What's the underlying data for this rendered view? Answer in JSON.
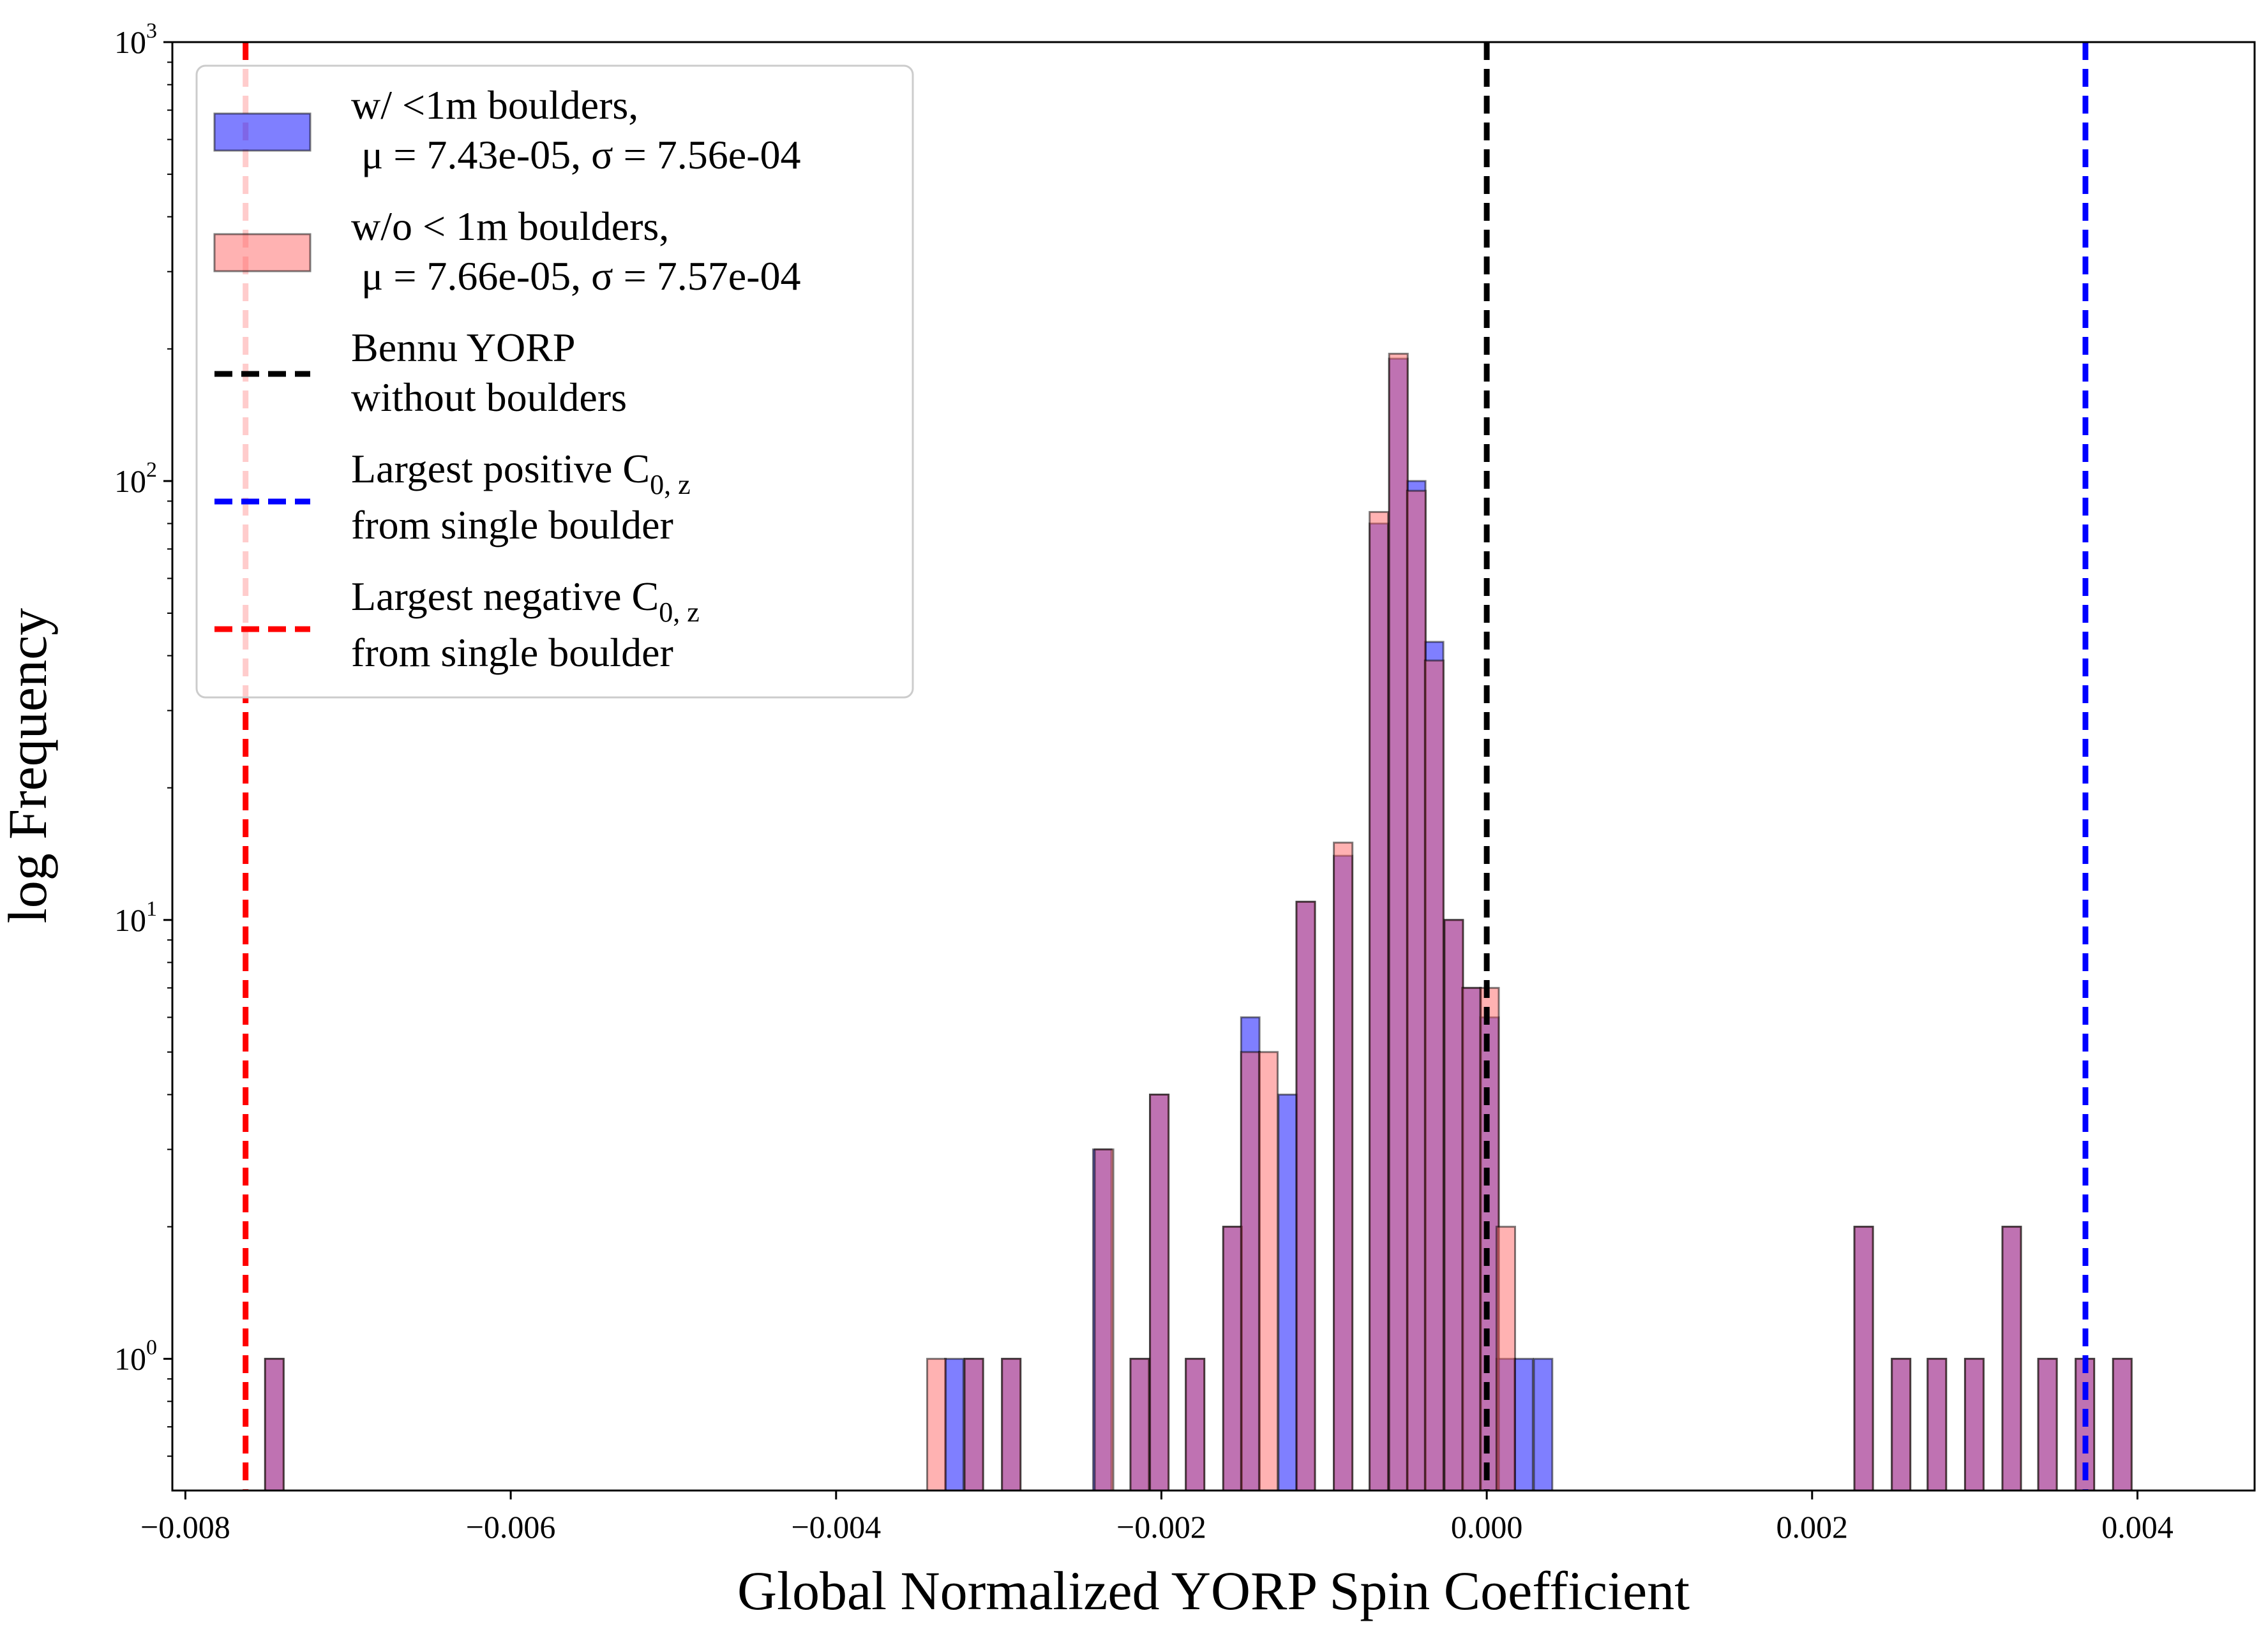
{
  "chart_data": {
    "type": "bar",
    "xlabel": "Global Normalized YORP Spin Coefficient",
    "ylabel": "log Frequency",
    "xlim": [
      -0.00808,
      0.00472
    ],
    "ylim_log": [
      -0.3,
      3
    ],
    "yscale": "log",
    "x_ticks": [
      {
        "value": -0.008,
        "label": "−0.008"
      },
      {
        "value": -0.006,
        "label": "−0.006"
      },
      {
        "value": -0.004,
        "label": "−0.004"
      },
      {
        "value": -0.002,
        "label": "−0.002"
      },
      {
        "value": 0.0,
        "label": "0.000"
      },
      {
        "value": 0.002,
        "label": "0.002"
      },
      {
        "value": 0.004,
        "label": "0.004"
      }
    ],
    "y_ticks": [
      {
        "exp": 0,
        "base": "10",
        "sup": "0"
      },
      {
        "exp": 1,
        "base": "10",
        "sup": "1"
      },
      {
        "exp": 2,
        "base": "10",
        "sup": "2"
      },
      {
        "exp": 3,
        "base": "10",
        "sup": "3"
      }
    ],
    "series": [
      {
        "key": "with",
        "color": "#0000ff",
        "legend_line1": "w/ <1m boulders,",
        "legend_line2": " μ = 7.43e-05, σ = 7.56e-04",
        "bin_width": 0.000113,
        "bins": [
          [
            -0.00751,
            1
          ],
          [
            -0.00333,
            1
          ],
          [
            -0.00321,
            1
          ],
          [
            -0.00298,
            1
          ],
          [
            -0.00242,
            3
          ],
          [
            -0.00219,
            1
          ],
          [
            -0.00207,
            4
          ],
          [
            -0.00185,
            1
          ],
          [
            -0.00162,
            2
          ],
          [
            -0.00151,
            6
          ],
          [
            -0.00128,
            4
          ],
          [
            -0.00117,
            11
          ],
          [
            -0.00094,
            14
          ],
          [
            -0.00072,
            80
          ],
          [
            -0.0006,
            190
          ],
          [
            -0.00049,
            100
          ],
          [
            -0.00038,
            43
          ],
          [
            -0.00026,
            10
          ],
          [
            -0.00015,
            7
          ],
          [
            -4e-05,
            6
          ],
          [
            6e-05,
            1
          ],
          [
            0.00017,
            1
          ],
          [
            0.00029,
            1
          ],
          [
            0.00226,
            2
          ],
          [
            0.00249,
            1
          ],
          [
            0.00271,
            1
          ],
          [
            0.00294,
            1
          ],
          [
            0.00317,
            2
          ],
          [
            0.00339,
            1
          ],
          [
            0.00362,
            1
          ],
          [
            0.00385,
            1
          ]
        ]
      },
      {
        "key": "without",
        "color": "#ff6666",
        "legend_line1": "w/o < 1m boulders,",
        "legend_line2": " μ = 7.66e-05, σ = 7.57e-04",
        "bin_width": 0.000114,
        "bins": [
          [
            -0.00751,
            1
          ],
          [
            -0.00344,
            1
          ],
          [
            -0.00321,
            1
          ],
          [
            -0.00298,
            1
          ],
          [
            -0.00241,
            3
          ],
          [
            -0.00219,
            1
          ],
          [
            -0.00207,
            4
          ],
          [
            -0.00185,
            1
          ],
          [
            -0.00162,
            2
          ],
          [
            -0.00151,
            5
          ],
          [
            -0.0014,
            5
          ],
          [
            -0.00117,
            11
          ],
          [
            -0.00094,
            15
          ],
          [
            -0.00072,
            85
          ],
          [
            -0.0006,
            195
          ],
          [
            -0.00049,
            95
          ],
          [
            -0.00038,
            39
          ],
          [
            -0.00026,
            10
          ],
          [
            -0.00015,
            7
          ],
          [
            -4e-05,
            7
          ],
          [
            6e-05,
            2
          ],
          [
            0.00226,
            2
          ],
          [
            0.00249,
            1
          ],
          [
            0.00271,
            1
          ],
          [
            0.00294,
            1
          ],
          [
            0.00317,
            2
          ],
          [
            0.00339,
            1
          ],
          [
            0.00362,
            1
          ],
          [
            0.00385,
            1
          ]
        ]
      }
    ],
    "vlines": [
      {
        "x": 0.0,
        "color": "#000000",
        "legend_line1": "Bennu YORP",
        "legend_line2": "without boulders"
      },
      {
        "x": 0.00368,
        "color": "#0000ff",
        "legend_line1": "Largest positive C",
        "legend_sub": "0, z",
        "legend_line2": "from single boulder"
      },
      {
        "x": -0.00763,
        "color": "#ff0000",
        "legend_line1": "Largest negative C",
        "legend_sub": "0, z",
        "legend_line2": "from single boulder"
      }
    ],
    "legend": "upper-left",
    "grid": false
  }
}
